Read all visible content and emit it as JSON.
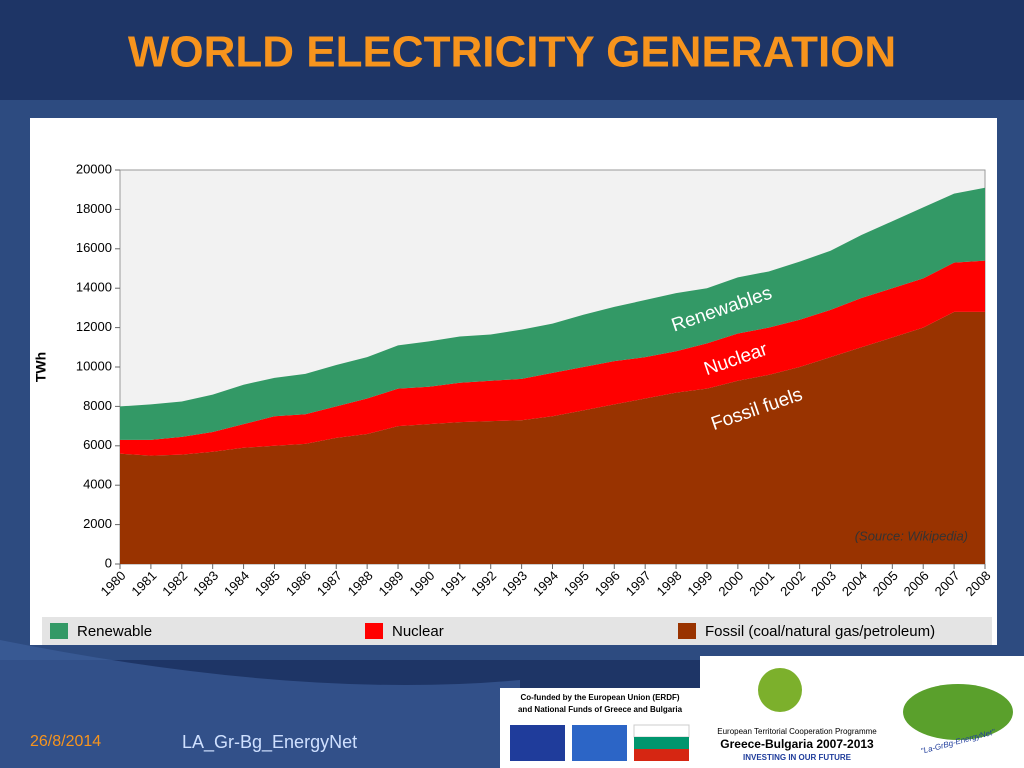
{
  "title": "WORLD ELECTRICITY GENERATION",
  "chart_data": {
    "type": "stacked-area",
    "y_label": "TWh",
    "x": [
      1980,
      1981,
      1982,
      1983,
      1984,
      1985,
      1986,
      1987,
      1988,
      1989,
      1990,
      1991,
      1992,
      1993,
      1994,
      1995,
      1996,
      1997,
      1998,
      1999,
      2000,
      2001,
      2002,
      2003,
      2004,
      2005,
      2006,
      2007,
      2008
    ],
    "xlim": [
      1980,
      2008
    ],
    "xticks": [
      1980,
      1981,
      1982,
      1983,
      1984,
      1985,
      1986,
      1987,
      1988,
      1989,
      1990,
      1991,
      1992,
      1993,
      1994,
      1995,
      1996,
      1997,
      1998,
      1999,
      2000,
      2001,
      2002,
      2003,
      2004,
      2005,
      2006,
      2007,
      2008
    ],
    "ylim": [
      0,
      20000
    ],
    "yticks": [
      0,
      2000,
      4000,
      6000,
      8000,
      10000,
      12000,
      14000,
      16000,
      18000,
      20000
    ],
    "series": [
      {
        "name": "Fossil (coal/natural gas/petroleum)",
        "color": "#993300",
        "values": [
          5600,
          5500,
          5550,
          5700,
          5900,
          6000,
          6100,
          6400,
          6600,
          7000,
          7100,
          7200,
          7250,
          7300,
          7500,
          7800,
          8100,
          8400,
          8700,
          8900,
          9300,
          9600,
          10000,
          10500,
          11000,
          11500,
          12000,
          12800,
          12800
        ]
      },
      {
        "name": "Nuclear",
        "color": "#ff0000",
        "values": [
          700,
          800,
          900,
          1000,
          1200,
          1500,
          1500,
          1600,
          1800,
          1900,
          1900,
          2000,
          2050,
          2100,
          2200,
          2200,
          2200,
          2100,
          2100,
          2300,
          2400,
          2400,
          2400,
          2400,
          2500,
          2500,
          2500,
          2500,
          2600
        ]
      },
      {
        "name": "Renewable",
        "color": "#339966",
        "values": [
          1700,
          1800,
          1800,
          1900,
          2000,
          1950,
          2050,
          2100,
          2100,
          2200,
          2300,
          2350,
          2350,
          2500,
          2500,
          2650,
          2750,
          2900,
          2950,
          2800,
          2850,
          2850,
          2950,
          3000,
          3200,
          3400,
          3600,
          3500,
          3700
        ]
      }
    ],
    "annotations": [
      "Renewables",
      "Nuclear",
      "Fossil fuels"
    ],
    "source": "(Source: Wikipedia)"
  },
  "footer": {
    "date": "26/8/2014",
    "project": "LA_Gr-Bg_EnergyNet"
  },
  "logos": {
    "cofunded": "Co-funded by the European Union (ERDF)",
    "cofunded2": "and National Funds of Greece and Bulgaria",
    "programme": "European Territorial Cooperation Programme",
    "programme_name": "Greece-Bulgaria 2007-2013",
    "motto": "INVESTING IN OUR FUTURE",
    "project_logo": "\"La-GrBg-EnergyNet\""
  }
}
